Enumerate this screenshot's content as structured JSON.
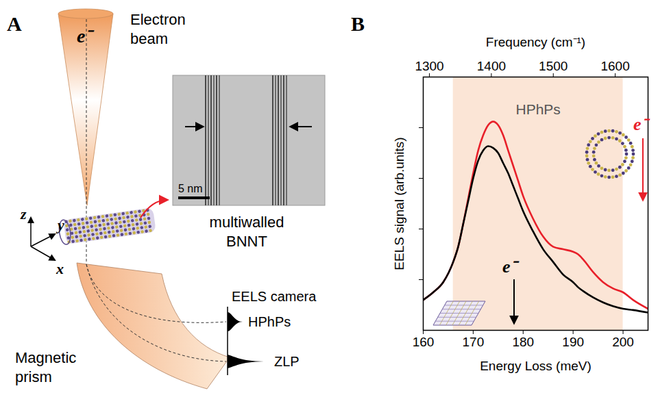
{
  "panel_a": {
    "letter": "A",
    "beam_label": "Electron beam",
    "electron_label": "e⁻",
    "image_label": "multiwalled BNNT",
    "scale_bar": "5 nm",
    "axis_labels": [
      "z",
      "y",
      "x"
    ],
    "prism_label": "Magnetic prism",
    "camera_label": "EELS camera",
    "peak_labels": [
      "HPhPs",
      "ZLP"
    ]
  },
  "chart_data": {
    "letter": "B",
    "type": "line",
    "xlabel": "Energy Loss (meV)",
    "ylabel": "EELS signal (arb.units)",
    "x2label": "Frequency (cm⁻¹)",
    "x": [
      160,
      162,
      164,
      166,
      167,
      168,
      169,
      170,
      171,
      172,
      173,
      174,
      175,
      176,
      177,
      178,
      179,
      180,
      182,
      184,
      186,
      188,
      190,
      191,
      192,
      194,
      196,
      198,
      200,
      202,
      205
    ],
    "series": [
      {
        "color": "#e8202a",
        "line_style": "solid",
        "annotation": "e⁻",
        "values": [
          0.12,
          0.15,
          0.19,
          0.27,
          0.33,
          0.42,
          0.52,
          0.62,
          0.71,
          0.77,
          0.81,
          0.824,
          0.81,
          0.77,
          0.71,
          0.65,
          0.59,
          0.53,
          0.44,
          0.37,
          0.33,
          0.32,
          0.31,
          0.3,
          0.28,
          0.23,
          0.19,
          0.165,
          0.15,
          0.12,
          0.085
        ]
      },
      {
        "color": "#000000",
        "line_style": "solid",
        "annotation": "e⁻",
        "values": [
          0.12,
          0.15,
          0.19,
          0.27,
          0.33,
          0.42,
          0.51,
          0.6,
          0.67,
          0.71,
          0.727,
          0.72,
          0.7,
          0.66,
          0.62,
          0.57,
          0.52,
          0.47,
          0.39,
          0.32,
          0.27,
          0.22,
          0.19,
          0.17,
          0.155,
          0.13,
          0.11,
          0.095,
          0.085,
          0.08,
          0.07
        ]
      }
    ],
    "xlim": [
      160,
      205
    ],
    "xticks": [
      160,
      170,
      180,
      190,
      200
    ],
    "x2lim": [
      1290,
      1653
    ],
    "x2ticks": [
      1300,
      1400,
      1500,
      1600
    ],
    "ylim": [
      0,
      1
    ],
    "yticks": [
      0.2,
      0.4,
      0.6,
      0.8
    ],
    "tick_labels": "x",
    "band": {
      "x1": 166,
      "x2": 200,
      "label": "HPhPs",
      "color": "#fbe5d6"
    }
  }
}
